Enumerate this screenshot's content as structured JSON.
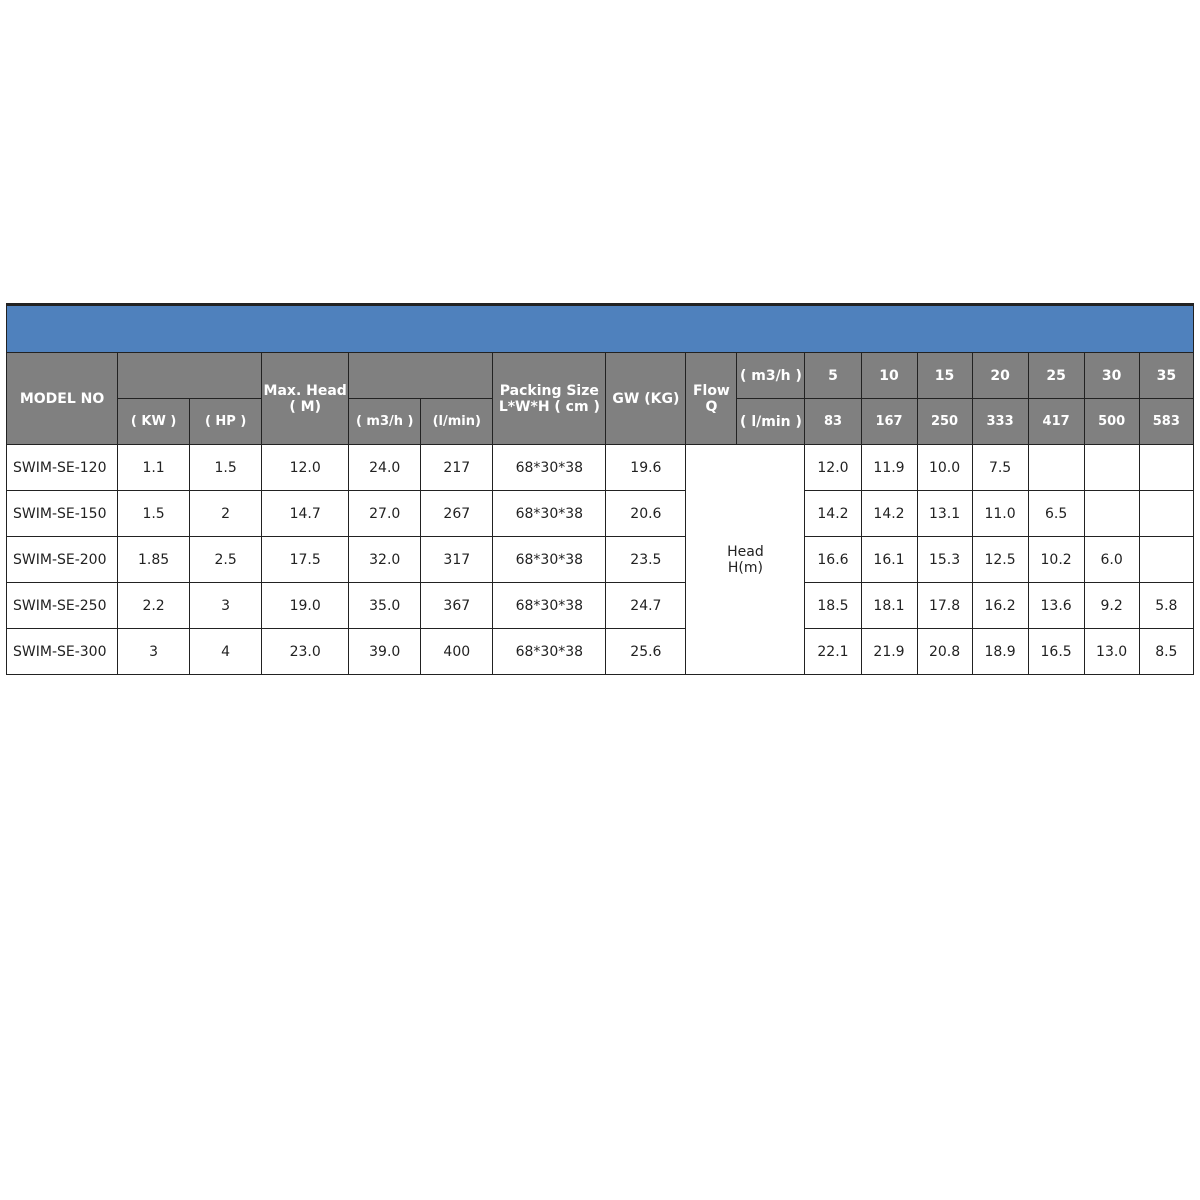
{
  "header": {
    "model_no": "MODEL NO",
    "kw": "( KW )",
    "hp": "( HP )",
    "max_head_1": "Max. Head",
    "max_head_2": "( M)",
    "m3h": "( m3/h )",
    "lmin": "(l/min)",
    "packing_1": "Packing Size",
    "packing_2": "L*W*H ( cm )",
    "gw": "GW (KG)",
    "flow_1": "Flow",
    "flow_2": "Q",
    "flow_m3h": "( m3/h )",
    "flow_lmin": "( l/min )",
    "flow_m3h_values": [
      "5",
      "10",
      "15",
      "20",
      "25",
      "30",
      "35"
    ],
    "flow_lmin_values": [
      "83",
      "167",
      "250",
      "333",
      "417",
      "500",
      "583"
    ],
    "head_1": "Head",
    "head_2": "H(m)"
  },
  "colors": {
    "band": "#4f81bd",
    "header": "#808080"
  },
  "rows": [
    {
      "model": "SWIM-SE-120",
      "kw": "1.1",
      "hp": "1.5",
      "max_head": "12.0",
      "m3h": "24.0",
      "lmin": "217",
      "packing": "68*30*38",
      "gw": "19.6",
      "heads": [
        "12.0",
        "11.9",
        "10.0",
        "7.5",
        "",
        "",
        ""
      ]
    },
    {
      "model": "SWIM-SE-150",
      "kw": "1.5",
      "hp": "2",
      "max_head": "14.7",
      "m3h": "27.0",
      "lmin": "267",
      "packing": "68*30*38",
      "gw": "20.6",
      "heads": [
        "14.2",
        "14.2",
        "13.1",
        "11.0",
        "6.5",
        "",
        ""
      ]
    },
    {
      "model": "SWIM-SE-200",
      "kw": "1.85",
      "hp": "2.5",
      "max_head": "17.5",
      "m3h": "32.0",
      "lmin": "317",
      "packing": "68*30*38",
      "gw": "23.5",
      "heads": [
        "16.6",
        "16.1",
        "15.3",
        "12.5",
        "10.2",
        "6.0",
        ""
      ]
    },
    {
      "model": "SWIM-SE-250",
      "kw": "2.2",
      "hp": "3",
      "max_head": "19.0",
      "m3h": "35.0",
      "lmin": "367",
      "packing": "68*30*38",
      "gw": "24.7",
      "heads": [
        "18.5",
        "18.1",
        "17.8",
        "16.2",
        "13.6",
        "9.2",
        "5.8"
      ]
    },
    {
      "model": "SWIM-SE-300",
      "kw": "3",
      "hp": "4",
      "max_head": "23.0",
      "m3h": "39.0",
      "lmin": "400",
      "packing": "68*30*38",
      "gw": "25.6",
      "heads": [
        "22.1",
        "21.9",
        "20.8",
        "18.9",
        "16.5",
        "13.0",
        "8.5"
      ]
    }
  ]
}
